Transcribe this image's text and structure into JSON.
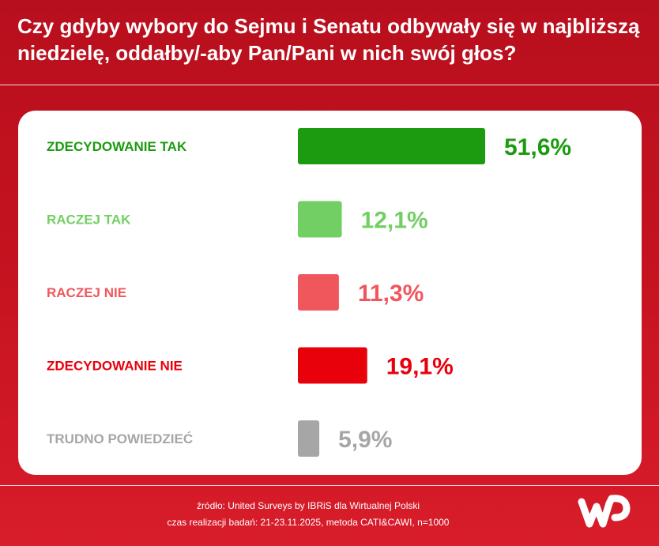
{
  "title_line1": "Czy gdyby wybory do Sejmu i Senatu odbywały się w najbliższą",
  "title_line2": "niedzielę, oddałby/-aby Pan/Pani w nich swój głos?",
  "chart_data": {
    "type": "bar",
    "orientation": "horizontal",
    "categories": [
      "ZDECYDOWANIE TAK",
      "RACZEJ TAK",
      "RACZEJ NIE",
      "ZDECYDOWANIE NIE",
      "TRUDNO POWIEDZIEĆ"
    ],
    "values": [
      51.6,
      12.1,
      11.3,
      19.1,
      5.9
    ],
    "value_labels": [
      "51,6%",
      "12,1%",
      "11,3%",
      "19,1%",
      "5,9%"
    ],
    "colors": [
      "#1c9b10",
      "#72cf63",
      "#f0575d",
      "#e8000b",
      "#a6a6a6"
    ],
    "unit": "%",
    "grid": false,
    "legend": "none"
  },
  "footer": {
    "source": "źródło: United Surveys by IBRiS dla Wirtualnej Polski",
    "details": "czas realizacji badań: 21-23.11.2025, metoda CATI&CAWI, n=1000"
  },
  "logo_icon": "wp-logo-icon",
  "colors": {
    "background": "#c4121f",
    "card": "#ffffff",
    "text_on_red": "#ffffff"
  }
}
